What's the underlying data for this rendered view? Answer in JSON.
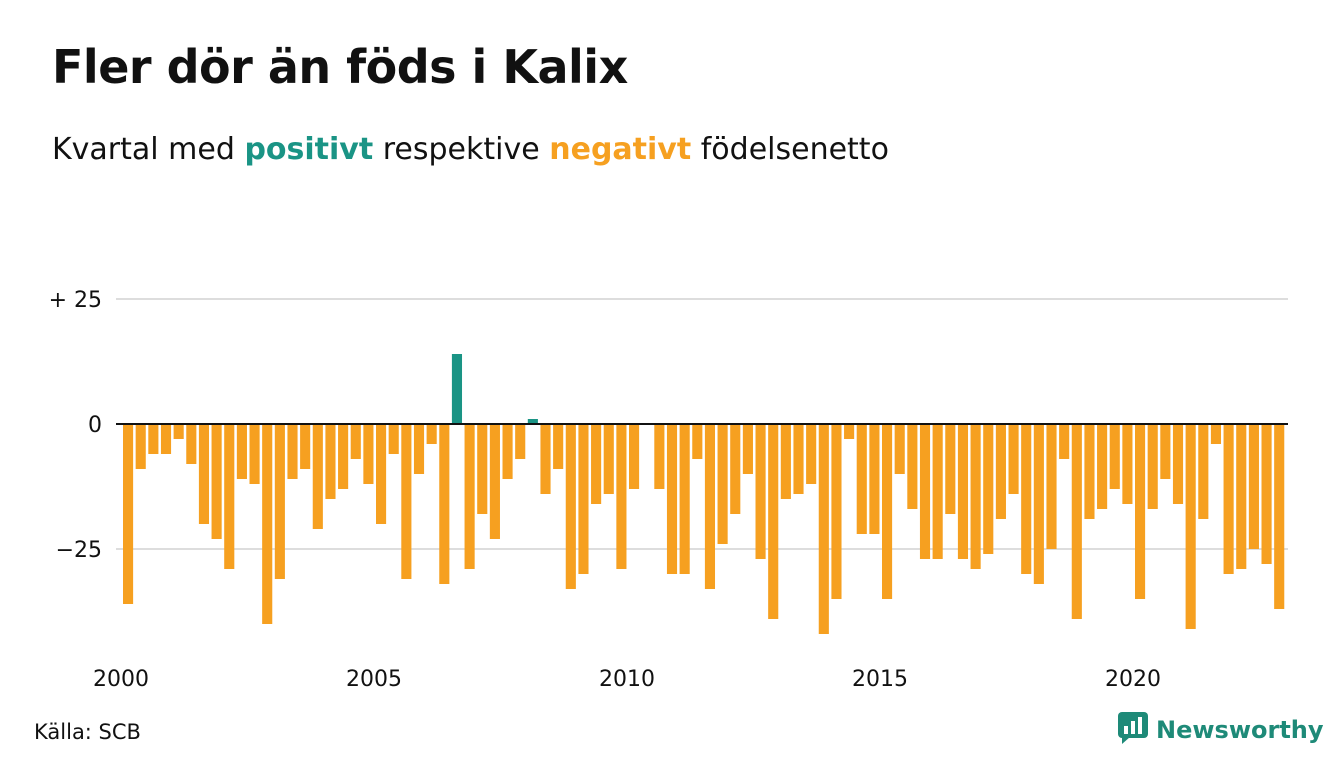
{
  "title": "Fler dör än föds i Kalix",
  "subtitle": {
    "before": "Kvartal med",
    "positive_word": "positivt",
    "middle": "respektive",
    "negative_word": "negativt",
    "after": "födelsenetto"
  },
  "source": "Källa: SCB",
  "brand": {
    "name": "Newsworthy",
    "icon": "newsworthy-logo-icon"
  },
  "colors": {
    "positive": "#1a9485",
    "negative": "#f6a020",
    "grid": "#dddddd",
    "zero_line": "#111111",
    "text": "#111111",
    "brand": "#1e8a78"
  },
  "chart_data": {
    "type": "bar",
    "x_start": 2000,
    "x_step": 0.25,
    "x_ticks": [
      2000,
      2005,
      2010,
      2015,
      2020
    ],
    "y_ticks": [
      {
        "value": 25,
        "label": "+ 25"
      },
      {
        "value": 0,
        "label": "0"
      },
      {
        "value": -25,
        "label": "−25"
      }
    ],
    "ylim": [
      -45,
      25
    ],
    "grid": true,
    "values": [
      -36,
      -9,
      -6,
      -6,
      -3,
      -8,
      -20,
      -23,
      -29,
      -11,
      -12,
      -40,
      -31,
      -11,
      -9,
      -21,
      -15,
      -13,
      -7,
      -12,
      -20,
      -6,
      -31,
      -10,
      -4,
      -32,
      14,
      -29,
      -18,
      -23,
      -11,
      -7,
      1,
      -14,
      -9,
      -33,
      -30,
      -16,
      -14,
      -29,
      -13,
      null,
      -13,
      -30,
      -30,
      -7,
      -33,
      -24,
      -18,
      -10,
      -27,
      -39,
      -15,
      -14,
      -12,
      -42,
      -35,
      -3,
      -22,
      -22,
      -35,
      -10,
      -17,
      -27,
      -27,
      -18,
      -27,
      -29,
      -26,
      -19,
      -14,
      -30,
      -32,
      -25,
      -7,
      -39,
      -19,
      -17,
      -13,
      -16,
      -35,
      -17,
      -11,
      -16,
      -41,
      -19,
      -4,
      -30,
      -29,
      -25,
      -28,
      -37
    ]
  }
}
